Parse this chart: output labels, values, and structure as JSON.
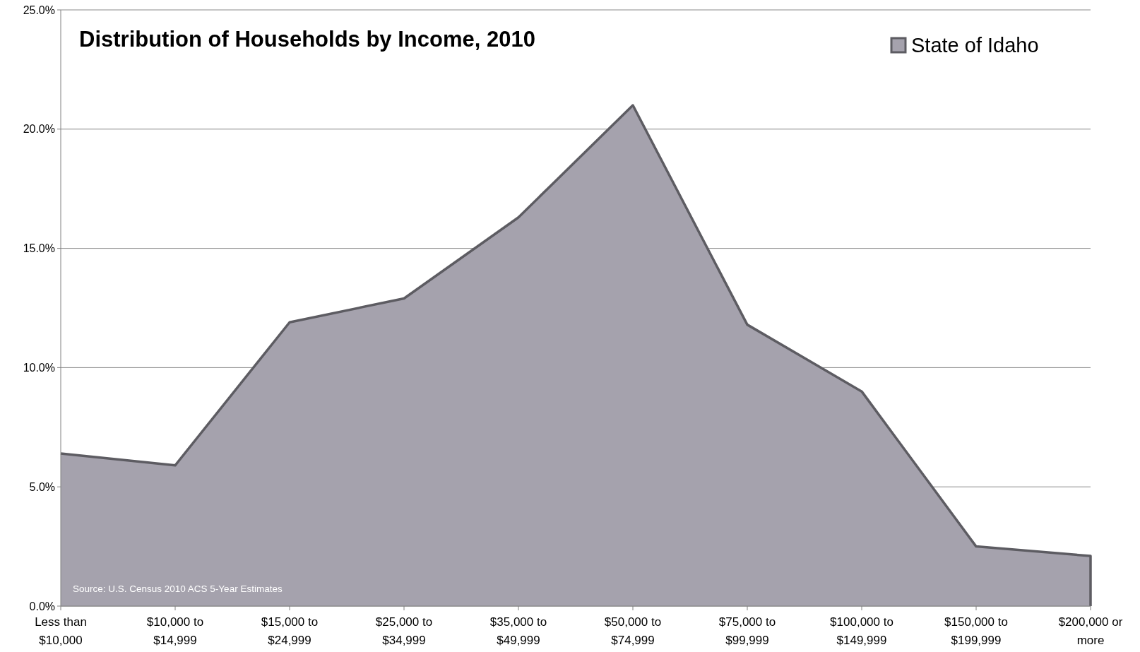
{
  "chart_data": {
    "type": "area",
    "title": "Distribution of Households by Income, 2010",
    "categories": [
      "Less than $10,000",
      "$10,000 to $14,999",
      "$15,000 to $24,999",
      "$25,000 to $34,999",
      "$35,000 to $49,999",
      "$50,000 to $74,999",
      "$75,000 to $99,999",
      "$100,000 to $149,999",
      "$150,000 to $199,999",
      "$200,000 or more"
    ],
    "series": [
      {
        "name": "State of Idaho",
        "color": "#a5a2ad",
        "values": [
          6.4,
          5.9,
          11.9,
          12.9,
          16.3,
          21.0,
          11.8,
          9.0,
          2.5,
          2.1
        ]
      }
    ],
    "ylim": [
      0,
      25
    ],
    "yticks": [
      {
        "value": 0,
        "label": "0.0%"
      },
      {
        "value": 5,
        "label": "5.0%"
      },
      {
        "value": 10,
        "label": "10.0%"
      },
      {
        "value": 15,
        "label": "15.0%"
      },
      {
        "value": 20,
        "label": "20.0%"
      },
      {
        "value": 25,
        "label": "25.0%"
      }
    ],
    "grid": "y",
    "legend": "top right",
    "annotations": [
      "Source: U.S. Census 2010 ACS 5-Year Estimates"
    ]
  }
}
